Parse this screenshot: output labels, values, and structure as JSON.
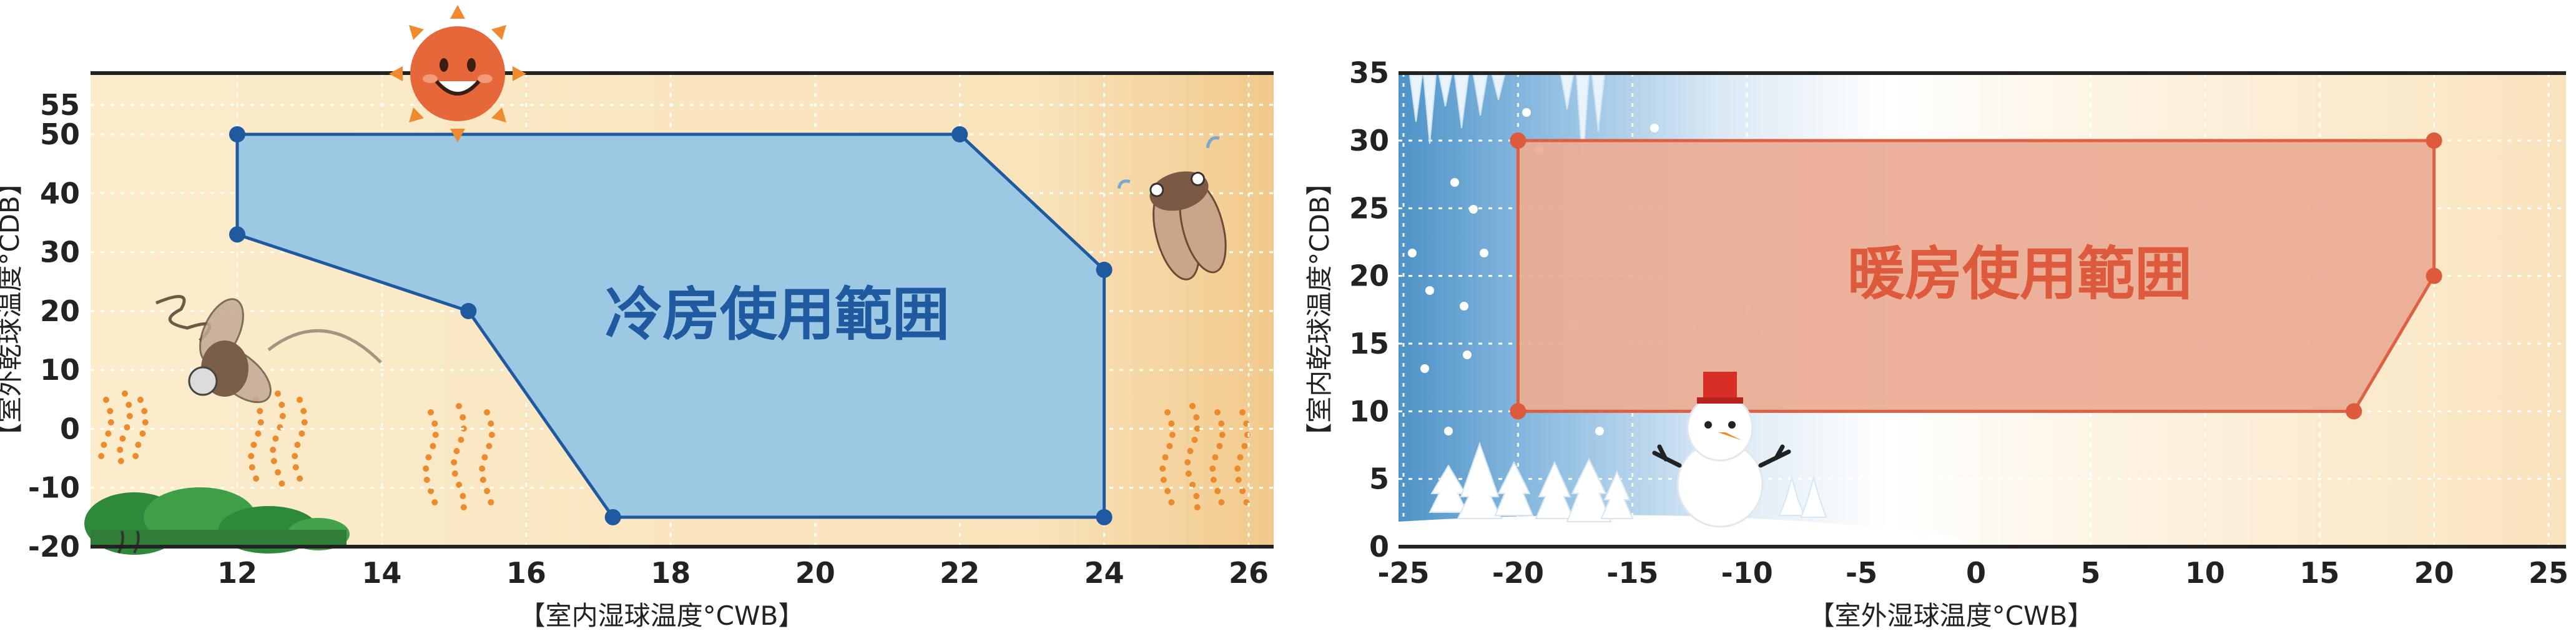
{
  "chart_data": [
    {
      "type": "area",
      "region_label": "冷房使用範囲",
      "xlabel": "【室内湿球温度°CWB】",
      "ylabel": "【室外乾球温度°CDB】",
      "xlim": [
        10,
        26
      ],
      "ylim": [
        -20,
        55
      ],
      "xticks": [
        "12",
        "14",
        "16",
        "18",
        "20",
        "22",
        "24",
        "26"
      ],
      "yticks": [
        "55",
        "50",
        "40",
        "30",
        "20",
        "10",
        "0",
        "-10",
        "-20"
      ],
      "polygon": [
        {
          "x": 12,
          "y": 50
        },
        {
          "x": 22,
          "y": 50
        },
        {
          "x": 24,
          "y": 27
        },
        {
          "x": 24,
          "y": -15
        },
        {
          "x": 17.2,
          "y": -15
        },
        {
          "x": 15.2,
          "y": 20
        },
        {
          "x": 12,
          "y": 33
        }
      ],
      "grid": true,
      "colors": {
        "fill": "#9cc8e4",
        "stroke": "#1f5aa0",
        "label": "#1f5aa0",
        "background": "#f9e6c0"
      }
    },
    {
      "type": "area",
      "region_label": "暖房使用範囲",
      "xlabel": "【室外湿球温度°CWB】",
      "ylabel": "【室内乾球温度°CDB】",
      "xlim": [
        -25,
        25
      ],
      "ylim": [
        0,
        35
      ],
      "xticks": [
        "-25",
        "-20",
        "-15",
        "-10",
        "-5",
        "0",
        "5",
        "10",
        "15",
        "20",
        "25"
      ],
      "yticks": [
        "35",
        "30",
        "25",
        "20",
        "15",
        "10",
        "5",
        "0"
      ],
      "polygon": [
        {
          "x": -20,
          "y": 30
        },
        {
          "x": 20,
          "y": 30
        },
        {
          "x": 20,
          "y": 20
        },
        {
          "x": 16.5,
          "y": 10
        },
        {
          "x": -20,
          "y": 10
        }
      ],
      "grid": true,
      "colors": {
        "fill": "#ebae96",
        "stroke": "#dd5a3c",
        "label": "#dd5a3c",
        "background": "#f9e6c0"
      }
    }
  ],
  "icons": [
    "sun-icon",
    "cicada-icon",
    "fly-icon",
    "bush-icon",
    "heat-wave-icon",
    "icicle-icon",
    "snowflake-icon",
    "pine-tree-icon",
    "snowman-icon"
  ]
}
